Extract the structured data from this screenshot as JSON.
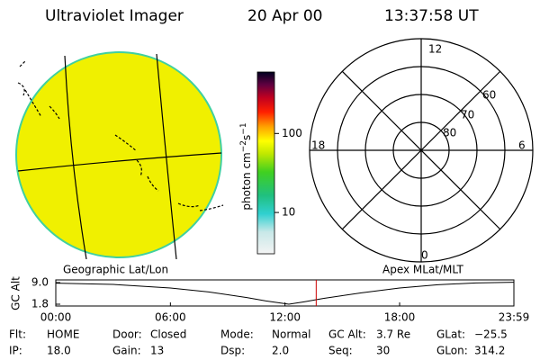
{
  "header": {
    "instrument": "Ultraviolet Imager",
    "date": "20 Apr 00",
    "time": "13:37:58 UT"
  },
  "colorbar": {
    "label": "photon cm",
    "exp1": "−2",
    "unit2": "s",
    "exp2": "−1",
    "log": true,
    "lim": [
      3,
      600
    ],
    "ticks": [
      10,
      100
    ]
  },
  "polar": {
    "mlt_top": "12",
    "mlt_left": "18",
    "mlt_right": "6",
    "mlt_bottom": "0",
    "lat_labels": [
      "60",
      "70",
      "80"
    ]
  },
  "map_titles": {
    "left": "Geographic Lat/Lon",
    "right": "Apex MLat/MLT"
  },
  "chart_data": {
    "type": "line",
    "ylabel": "GC Alt",
    "x": [
      0,
      3,
      6,
      8,
      10,
      11,
      12.2,
      13,
      14,
      16,
      18,
      20,
      22,
      23.983
    ],
    "series": [
      {
        "color": "#000000",
        "values": [
          8.8,
          8.4,
          7.2,
          5.9,
          4.0,
          2.9,
          1.8,
          2.6,
          3.7,
          5.6,
          7.2,
          8.3,
          8.9,
          9.1
        ]
      }
    ],
    "xlim": [
      0,
      23.983
    ],
    "xticks": [
      {
        "value": 0,
        "label": "00:00"
      },
      {
        "value": 6,
        "label": "06:00"
      },
      {
        "value": 12,
        "label": "12:00"
      },
      {
        "value": 18,
        "label": "18:00"
      },
      {
        "value": 23.983,
        "label": "23:59"
      }
    ],
    "ylim": [
      1.2,
      9.9
    ],
    "yticks": [
      {
        "value": 1.8,
        "label": "1.8"
      },
      {
        "value": 9.0,
        "label": "9.0"
      }
    ],
    "current_x": 13.633,
    "current_color": "#cc0000"
  },
  "info": [
    [
      {
        "label": "Flt:",
        "value": "HOME"
      },
      {
        "label": "Door:",
        "value": "Closed"
      },
      {
        "label": "Mode:",
        "value": "Normal"
      },
      {
        "label": "GC Alt:",
        "value": "3.7 Re"
      },
      {
        "label": "GLat:",
        "value": "−25.5"
      }
    ],
    [
      {
        "label": "IP:",
        "value": "18.0"
      },
      {
        "label": "Gain:",
        "value": "13"
      },
      {
        "label": "Dsp:",
        "value": "2.0"
      },
      {
        "label": "Seq:",
        "value": "30"
      },
      {
        "label": "GLon:",
        "value": "314.2"
      }
    ]
  ]
}
